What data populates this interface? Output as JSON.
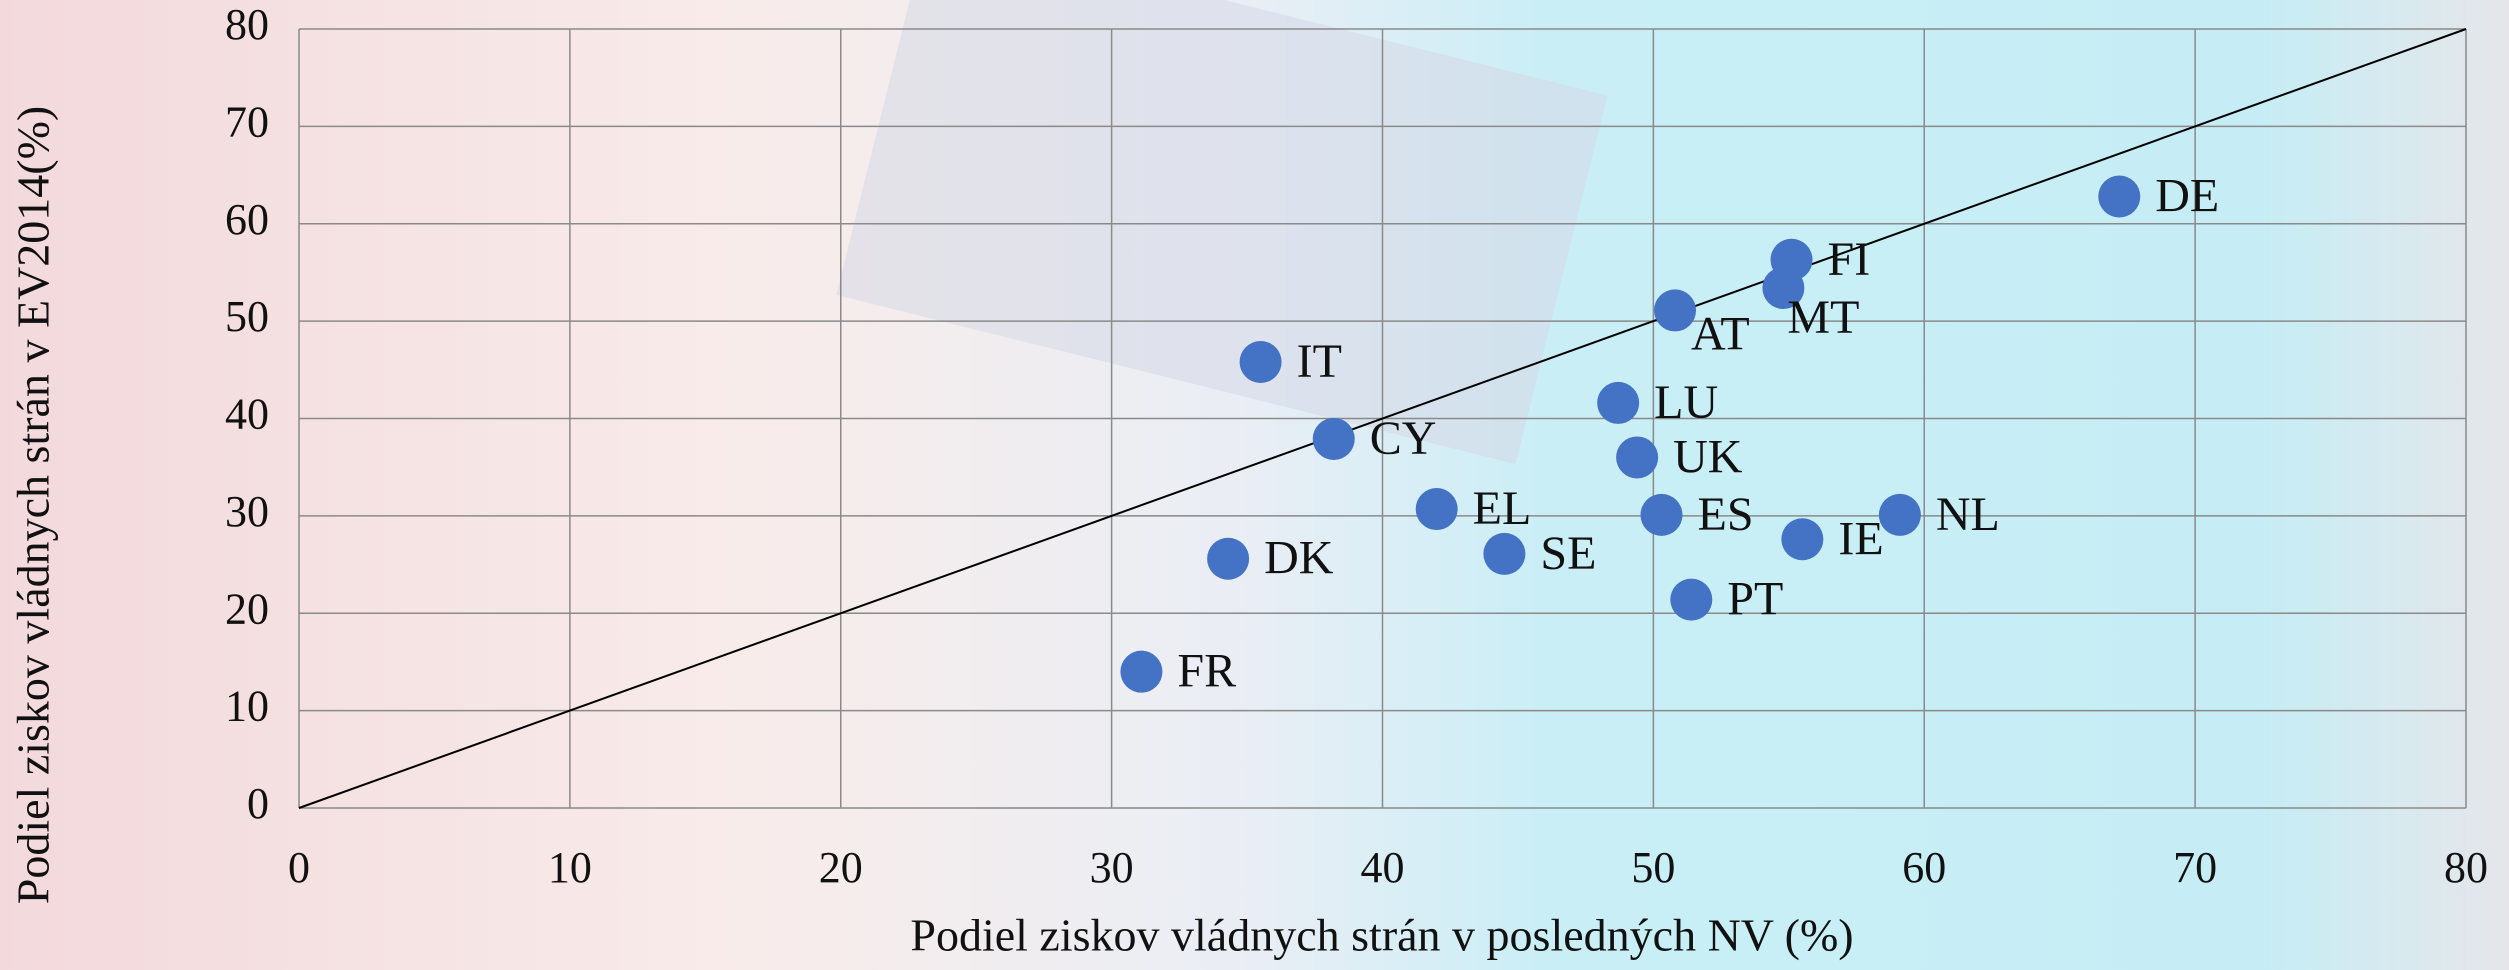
{
  "chart_data": {
    "type": "scatter",
    "x_label": "Podiel ziskov vládnych strán v posledných NV (%)",
    "y_label": "Podiel ziskov vládnych strán v EV2014(%)",
    "point_labels": [
      "DE",
      "FI",
      "MT",
      "AT",
      "IT",
      "LU",
      "CY",
      "UK",
      "EL",
      "ES",
      "NL",
      "IE",
      "SE",
      "DK",
      "PT",
      "FR"
    ],
    "x": [
      67.2,
      55.1,
      54.8,
      50.8,
      35.5,
      48.7,
      38.2,
      49.4,
      42.0,
      50.3,
      59.1,
      55.5,
      44.5,
      34.3,
      51.4,
      31.1
    ],
    "values": [
      62.8,
      56.3,
      53.4,
      51.1,
      45.8,
      41.6,
      37.9,
      36.0,
      30.7,
      30.1,
      30.1,
      27.6,
      26.1,
      25.6,
      21.4,
      14.0
    ],
    "color": "#4472c4",
    "xlim": [
      0,
      80
    ],
    "ylim": [
      0,
      80
    ],
    "xticks": [
      0,
      10,
      20,
      30,
      40,
      50,
      60,
      70,
      80
    ],
    "yticks": [
      0,
      10,
      20,
      30,
      40,
      50,
      60,
      70,
      80
    ],
    "grid": true
  }
}
